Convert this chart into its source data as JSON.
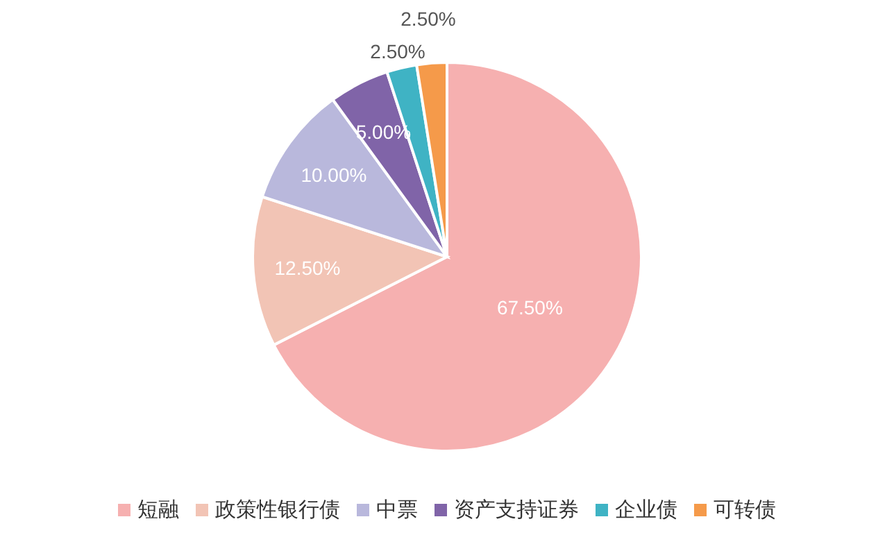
{
  "chart_data": {
    "type": "pie",
    "categories": [
      "短融",
      "政策性银行债",
      "中票",
      "资产支持证券",
      "企业债",
      "可转债"
    ],
    "values": [
      67.5,
      12.5,
      10,
      5,
      2.5,
      2.5
    ],
    "colors": [
      "#f6b0b0",
      "#f2c4b5",
      "#b9b8dc",
      "#8064a8",
      "#3fb3c4",
      "#f59a4a"
    ],
    "value_labels": [
      "67.50%",
      "12.50%",
      "10.00%",
      "5.00%",
      "2.50%",
      "2.50%"
    ],
    "legend": "bottom"
  }
}
